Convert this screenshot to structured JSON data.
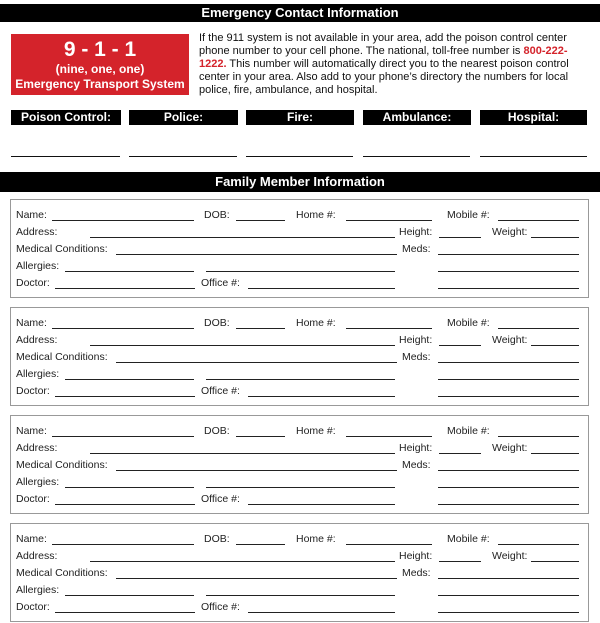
{
  "header": {
    "title": "Emergency Contact Information"
  },
  "emergency_box": {
    "number": "9 - 1 - 1",
    "spelled": "(nine, one, one)",
    "system": "Emergency Transport System",
    "color": "#d4232b"
  },
  "intro": {
    "before": "If the 911 system is not available in your area, add the poison control center phone number to your cell phone. The national, toll-free number is ",
    "phone": "800-222-1222.",
    "after": " This number will automatically direct you to the nearest poison control center in your area. Also add to your phone’s directory the numbers for local police, fire, ambulance, and hospital."
  },
  "contacts": [
    "Poison Control:",
    "Police:",
    "Fire:",
    "Ambulance:",
    "Hospital:"
  ],
  "family": {
    "title": "Family Member Information",
    "labels": {
      "name": "Name:",
      "dob": "DOB:",
      "home": "Home #:",
      "mobile": "Mobile #:",
      "address": "Address:",
      "height": "Height:",
      "weight": "Weight:",
      "medical": "Medical Conditions:",
      "meds": "Meds:",
      "allergies": "Allergies:",
      "doctor": "Doctor:",
      "office": "Office #:"
    }
  }
}
